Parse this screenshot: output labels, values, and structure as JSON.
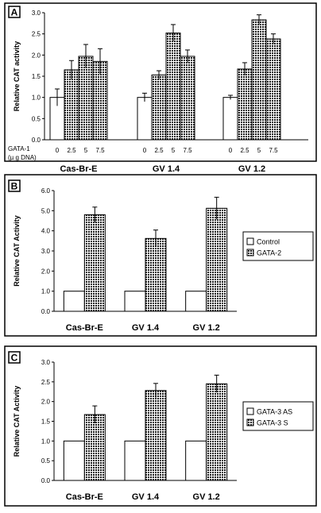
{
  "colors": {
    "frame": "#000000",
    "dot_fill": "#1a1a1a",
    "dot_bg": "#ffffff",
    "control_fill": "#ffffff"
  },
  "chart_data": [
    {
      "type": "bar",
      "panel": "A",
      "ylabel": "Relative CAT activity",
      "ylim": [
        0,
        3.0
      ],
      "yticks": [
        "0.0",
        "0.5",
        "1.0",
        "1.5",
        "2.0",
        "2.5",
        "3.0"
      ],
      "dose_label_line1": "GATA-1",
      "dose_label_line2": "(µ g DNA)",
      "doses": [
        "0",
        "2.5",
        "5",
        "7.5"
      ],
      "groups": [
        {
          "name": "Cas-Br-E",
          "values": [
            1.0,
            1.65,
            1.97,
            1.85
          ],
          "errors": [
            0.2,
            0.22,
            0.28,
            0.3
          ]
        },
        {
          "name": "GV 1.4",
          "values": [
            1.0,
            1.53,
            2.52,
            1.97
          ],
          "errors": [
            0.1,
            0.1,
            0.2,
            0.15
          ]
        },
        {
          "name": "GV 1.2",
          "values": [
            1.0,
            1.67,
            2.83,
            2.38
          ],
          "errors": [
            0.05,
            0.15,
            0.12,
            0.12
          ]
        }
      ],
      "grid": false
    },
    {
      "type": "bar",
      "panel": "B",
      "ylabel": "Relative CAT Activity",
      "ylim": [
        0,
        6.0
      ],
      "yticks": [
        "0.0",
        "1.0",
        "2.0",
        "3.0",
        "4.0",
        "5.0",
        "6.0"
      ],
      "categories": [
        "Cas-Br-E",
        "GV 1.4",
        "GV 1.2"
      ],
      "series": [
        {
          "name": "Control",
          "values": [
            1.0,
            1.0,
            1.0
          ],
          "errors": [
            0,
            0,
            0
          ]
        },
        {
          "name": "GATA-2",
          "values": [
            4.8,
            3.62,
            5.12
          ],
          "errors": [
            0.38,
            0.42,
            0.55
          ]
        }
      ],
      "legend_position": "right",
      "grid": false
    },
    {
      "type": "bar",
      "panel": "C",
      "ylabel": "Relative CAT Activity",
      "ylim": [
        0,
        3.0
      ],
      "yticks": [
        "0.0",
        "0.5",
        "1.0",
        "1.5",
        "2.0",
        "2.5",
        "3.0"
      ],
      "categories": [
        "Cas-Br-E",
        "GV 1.4",
        "GV 1.2"
      ],
      "series": [
        {
          "name": "GATA-3 AS",
          "values": [
            1.0,
            1.0,
            1.0
          ],
          "errors": [
            0,
            0,
            0
          ]
        },
        {
          "name": "GATA-3 S",
          "values": [
            1.67,
            2.28,
            2.45
          ],
          "errors": [
            0.22,
            0.18,
            0.22
          ]
        }
      ],
      "legend_position": "right",
      "grid": false
    }
  ]
}
